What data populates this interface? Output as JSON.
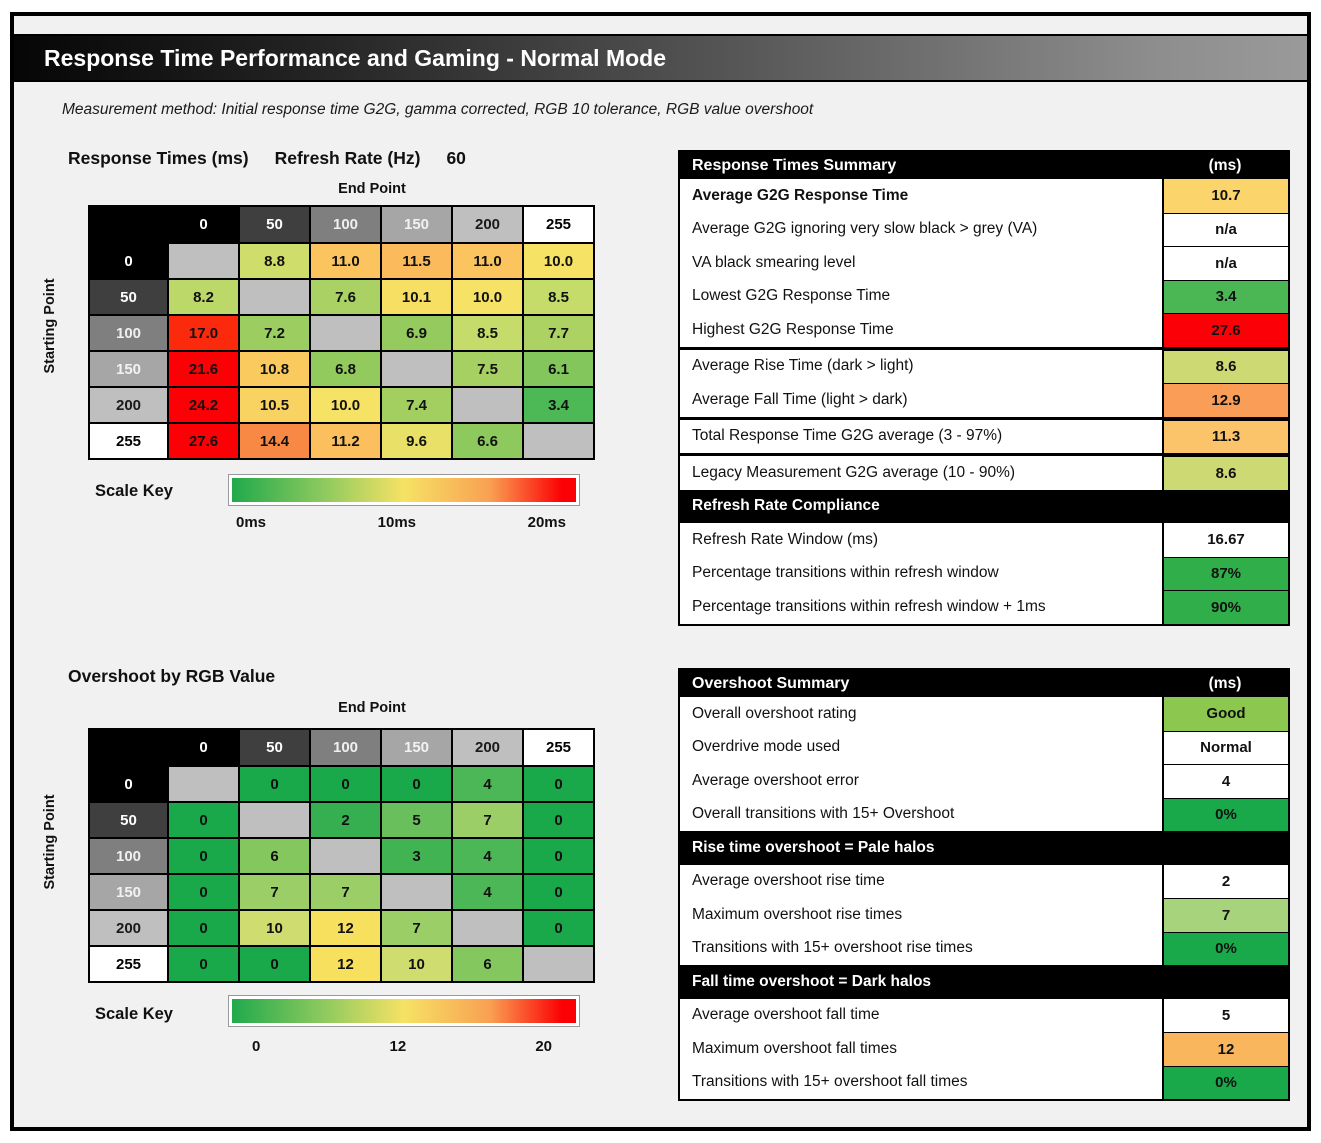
{
  "page": {
    "title": "Response Time Performance and Gaming - Normal Mode",
    "subtitle": "Measurement method: Initial response time G2G, gamma corrected, RGB 10 tolerance, RGB value overshoot"
  },
  "chart_data": [
    {
      "id": "response_matrix",
      "type": "heatmap",
      "title": "Response Times (ms)",
      "refresh_rate_label": "Refresh Rate (Hz)",
      "refresh_rate_value": "60",
      "x_label": "End Point",
      "y_label": "Starting Point",
      "levels": [
        "0",
        "50",
        "100",
        "150",
        "200",
        "255"
      ],
      "level_bg": [
        "#000000",
        "#3f3f3f",
        "#7f7f7f",
        "#a6a6a6",
        "#bfbfbf",
        "#ffffff"
      ],
      "level_fg": [
        "#ffffff",
        "#ffffff",
        "#f0f0f0",
        "#f2f2f2",
        "#1a1a1a",
        "#000000"
      ],
      "diagonal_color": "#bfbfbf",
      "rows": [
        [
          null,
          "8.8",
          "11.0",
          "11.5",
          "11.0",
          "10.0"
        ],
        [
          "8.2",
          null,
          "7.6",
          "10.1",
          "10.0",
          "8.5"
        ],
        [
          "17.0",
          "7.2",
          null,
          "6.9",
          "8.5",
          "7.7"
        ],
        [
          "21.6",
          "10.8",
          "6.8",
          null,
          "7.5",
          "6.1"
        ],
        [
          "24.2",
          "10.5",
          "10.0",
          "7.4",
          null,
          "3.4"
        ],
        [
          "27.6",
          "14.4",
          "11.2",
          "9.6",
          "6.6",
          null
        ]
      ],
      "scale": {
        "label": "Scale Key",
        "ticks": [
          "0ms",
          "10ms",
          "20ms"
        ],
        "min": 0,
        "mid": 10,
        "max": 20,
        "stops": [
          [
            0,
            "#21a94c"
          ],
          [
            3.4,
            "#4cb956"
          ],
          [
            5,
            "#6cc058"
          ],
          [
            7,
            "#96cb5e"
          ],
          [
            8.6,
            "#c8dc6b"
          ],
          [
            10,
            "#f6e265"
          ],
          [
            11,
            "#fbc45e"
          ],
          [
            13,
            "#f99b53"
          ],
          [
            15,
            "#f8813f"
          ],
          [
            17,
            "#fb2a0d"
          ],
          [
            18.5,
            "#fb0004"
          ],
          [
            40,
            "#fb0004"
          ]
        ]
      }
    },
    {
      "id": "overshoot_matrix",
      "type": "heatmap",
      "title": "Overshoot by RGB Value",
      "x_label": "End Point",
      "y_label": "Starting Point",
      "levels": [
        "0",
        "50",
        "100",
        "150",
        "200",
        "255"
      ],
      "level_bg": [
        "#000000",
        "#3f3f3f",
        "#7f7f7f",
        "#a6a6a6",
        "#bfbfbf",
        "#ffffff"
      ],
      "level_fg": [
        "#ffffff",
        "#ffffff",
        "#f0f0f0",
        "#f2f2f2",
        "#1a1a1a",
        "#000000"
      ],
      "diagonal_color": "#bfbfbf",
      "rows": [
        [
          null,
          "0",
          "0",
          "0",
          "4",
          "0"
        ],
        [
          "0",
          null,
          "2",
          "5",
          "7",
          "0"
        ],
        [
          "0",
          "6",
          null,
          "3",
          "4",
          "0"
        ],
        [
          "0",
          "7",
          "7",
          null,
          "4",
          "0"
        ],
        [
          "0",
          "10",
          "12",
          "7",
          null,
          "0"
        ],
        [
          "0",
          "0",
          "12",
          "10",
          "6",
          null
        ]
      ],
      "scale": {
        "label": "Scale Key",
        "ticks": [
          "0",
          "12",
          "20"
        ],
        "min": 0,
        "mid": 12,
        "max": 20,
        "stops": [
          [
            0,
            "#19a84a"
          ],
          [
            2,
            "#35af50"
          ],
          [
            4,
            "#4cb756"
          ],
          [
            6,
            "#84c75f"
          ],
          [
            8,
            "#b2d56e"
          ],
          [
            10,
            "#cfdd70"
          ],
          [
            12,
            "#f7e05d"
          ],
          [
            14,
            "#fbc45e"
          ],
          [
            16,
            "#f9964f"
          ],
          [
            18,
            "#fb3612"
          ],
          [
            20,
            "#fb0004"
          ]
        ]
      }
    },
    {
      "id": "response_summary",
      "type": "table",
      "title": "Response Times Summary",
      "unit": "(ms)",
      "rows": [
        {
          "label": "Average G2G Response Time",
          "value": "10.7",
          "color": "#fbd46b",
          "bold": true
        },
        {
          "label": "Average G2G ignoring very slow black > grey (VA)",
          "value": "n/a",
          "color": "#ffffff"
        },
        {
          "label": "VA black smearing level",
          "value": "n/a",
          "color": "#ffffff"
        },
        {
          "label": "Lowest G2G Response Time",
          "value": "3.4",
          "color": "#4ab754"
        },
        {
          "label": "Highest G2G Response Time",
          "value": "27.6",
          "color": "#fb0007",
          "sep_after": true
        },
        {
          "label": "Average Rise Time (dark > light)",
          "value": "8.6",
          "color": "#cdd973"
        },
        {
          "label": "Average Fall Time (light > dark)",
          "value": "12.9",
          "color": "#f99d57",
          "sep_after": true
        },
        {
          "label": "Total Response Time G2G average (3 - 97%)",
          "value": "11.3",
          "color": "#fbc46a",
          "sep_after": true
        },
        {
          "label": "Legacy Measurement G2G average (10 - 90%)",
          "value": "8.6",
          "color": "#cdd973"
        },
        {
          "type": "section",
          "label": "Refresh Rate Compliance"
        },
        {
          "label": "Refresh Rate Window (ms)",
          "value": "16.67",
          "color": "#ffffff"
        },
        {
          "label": "Percentage transitions within refresh window",
          "value": "87%",
          "color": "#2fae49"
        },
        {
          "label": "Percentage transitions within refresh window + 1ms",
          "value": "90%",
          "color": "#2fae49"
        }
      ]
    },
    {
      "id": "overshoot_summary",
      "type": "table",
      "title": "Overshoot Summary",
      "unit": "(ms)",
      "rows": [
        {
          "label": "Overall overshoot rating",
          "value": "Good",
          "color": "#8cc84f"
        },
        {
          "label": "Overdrive mode used",
          "value": "Normal",
          "color": "#ffffff"
        },
        {
          "label": "Average overshoot error",
          "value": "4",
          "color": "#ffffff"
        },
        {
          "label": "Overall transitions with 15+ Overshoot",
          "value": "0%",
          "color": "#19a84a"
        },
        {
          "type": "section",
          "label": "Rise time overshoot = Pale halos"
        },
        {
          "label": "Average overshoot rise time",
          "value": "2",
          "color": "#ffffff"
        },
        {
          "label": "Maximum overshoot rise times",
          "value": "7",
          "color": "#a6d37c"
        },
        {
          "label": "Transitions with 15+ overshoot rise times",
          "value": "0%",
          "color": "#19a84a"
        },
        {
          "type": "section",
          "label": "Fall time overshoot = Dark halos"
        },
        {
          "label": "Average overshoot fall time",
          "value": "5",
          "color": "#ffffff"
        },
        {
          "label": "Maximum overshoot fall times",
          "value": "12",
          "color": "#f9b65c"
        },
        {
          "label": "Transitions with 15+ overshoot fall times",
          "value": "0%",
          "color": "#19a84a"
        }
      ]
    }
  ]
}
